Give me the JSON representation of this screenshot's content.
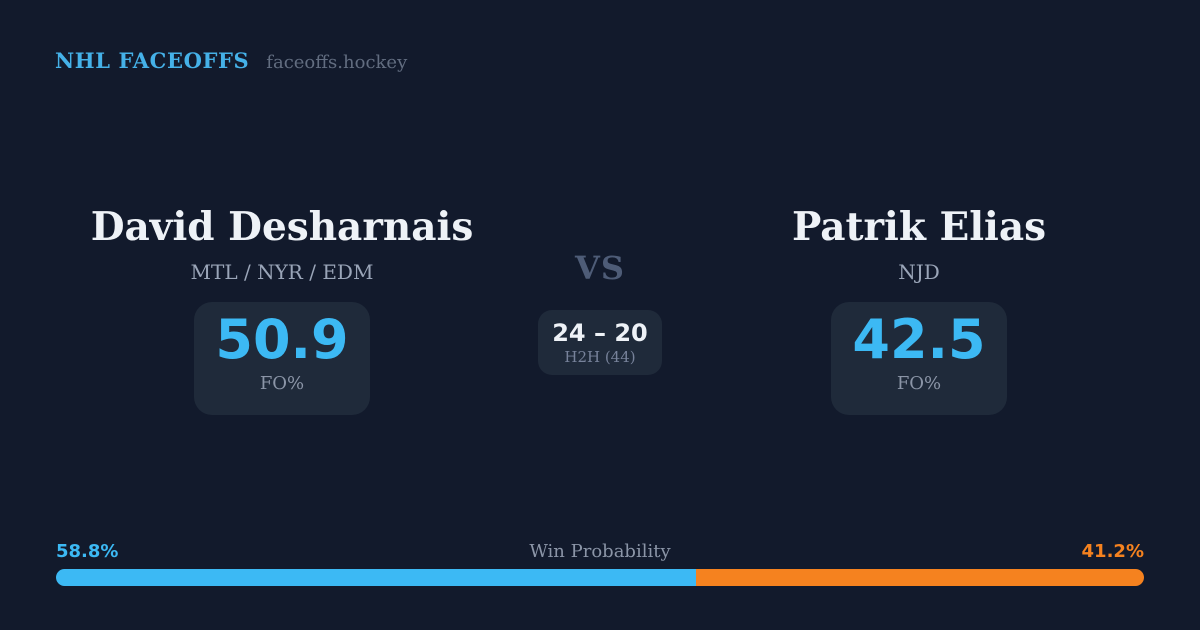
{
  "header": {
    "brand": "NHL FACEOFFS",
    "site": "faceoffs.hockey"
  },
  "matchup": {
    "vs_label": "VS",
    "player1": {
      "name": "David Desharnais",
      "teams": "MTL / NYR / EDM",
      "fo_pct": "50.9",
      "fo_label": "FO%"
    },
    "player2": {
      "name": "Patrik Elias",
      "teams": "NJD",
      "fo_pct": "42.5",
      "fo_label": "FO%"
    },
    "h2h": {
      "score": "24 – 20",
      "label": "H2H (44)",
      "wins_player1": 24,
      "wins_player2": 20,
      "total": 44
    }
  },
  "win_probability": {
    "label": "Win Probability",
    "left_pct": "58.8%",
    "right_pct": "41.2%",
    "left_value": 58.8,
    "right_value": 41.2,
    "left_bar_style": "width:58.8%"
  },
  "colors": {
    "bg": "#121a2c",
    "panel": "#1f2a3a",
    "accent_blue": "#3cb9f4",
    "brand_blue": "#45b1e8",
    "accent_orange": "#f5821f",
    "text_primary": "#eef2f7",
    "team_color": "#9aa5b8",
    "text_muted": "#8b95a7",
    "text_faint": "#77829a",
    "site_color": "#626d80",
    "vs_color": "#4e5c77"
  }
}
